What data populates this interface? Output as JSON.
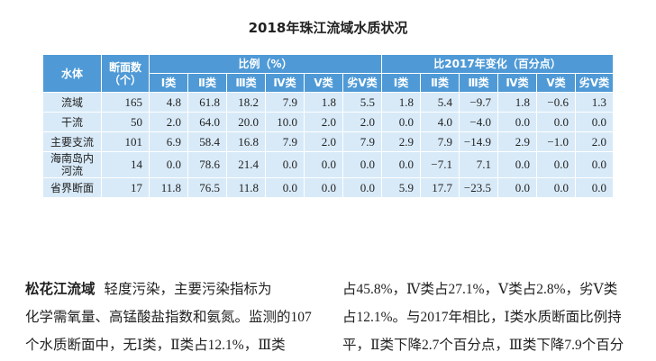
{
  "title": "2018年珠江流域水质状况",
  "table": {
    "header": [
      "水体",
      "断面数（个）",
      "比例（%）",
      "比2017年变化（百分点）"
    ],
    "subheader": [
      "Ⅰ类",
      "Ⅱ类",
      "Ⅲ类",
      "Ⅳ类",
      "Ⅴ类",
      "劣Ⅴ类",
      "Ⅰ类",
      "Ⅱ类",
      "Ⅲ类",
      "Ⅳ类",
      "Ⅴ类",
      "劣Ⅴ类"
    ],
    "rows": [
      [
        "流域",
        "165",
        "4.8",
        "61.8",
        "18.2",
        "7.9",
        "1.8",
        "5.5",
        "1.8",
        "5.4",
        "−9.7",
        "1.8",
        "−0.6",
        "1.3"
      ],
      [
        "干流",
        "50",
        "2.0",
        "64.0",
        "20.0",
        "10.0",
        "2.0",
        "2.0",
        "0.0",
        "4.0",
        "−4.0",
        "0.0",
        "0.0",
        "0.0"
      ],
      [
        "主要支流",
        "101",
        "6.9",
        "58.4",
        "16.8",
        "7.9",
        "2.0",
        "7.9",
        "2.9",
        "7.9",
        "−14.9",
        "2.9",
        "−1.0",
        "2.0"
      ],
      [
        "海南岛内河流",
        "14",
        "0.0",
        "78.6",
        "21.4",
        "0.0",
        "0.0",
        "0.0",
        "0.0",
        "−7.1",
        "7.1",
        "0.0",
        "0.0",
        "0.0"
      ],
      [
        "省界断面",
        "17",
        "11.8",
        "76.5",
        "11.8",
        "0.0",
        "0.0",
        "0.0",
        "5.9",
        "17.7",
        "−23.5",
        "0.0",
        "0.0",
        "0.0"
      ]
    ]
  },
  "paragraph": {
    "lead": "松花江流域",
    "left_lines": [
      "轻度污染，主要污染指标为",
      "化学需氧量、高锰酸盐指数和氨氮。监测的107",
      "个水质断面中，无Ⅰ类，Ⅱ类占12.1%，Ⅲ类"
    ],
    "right_lines": [
      "占45.8%，Ⅳ类占27.1%，Ⅴ类占2.8%，劣Ⅴ类",
      "占12.1%。与2017年相比，Ⅰ类水质断面比例持",
      "平，Ⅱ类下降2.7个百分点，Ⅲ类下降7.9个百分"
    ]
  }
}
